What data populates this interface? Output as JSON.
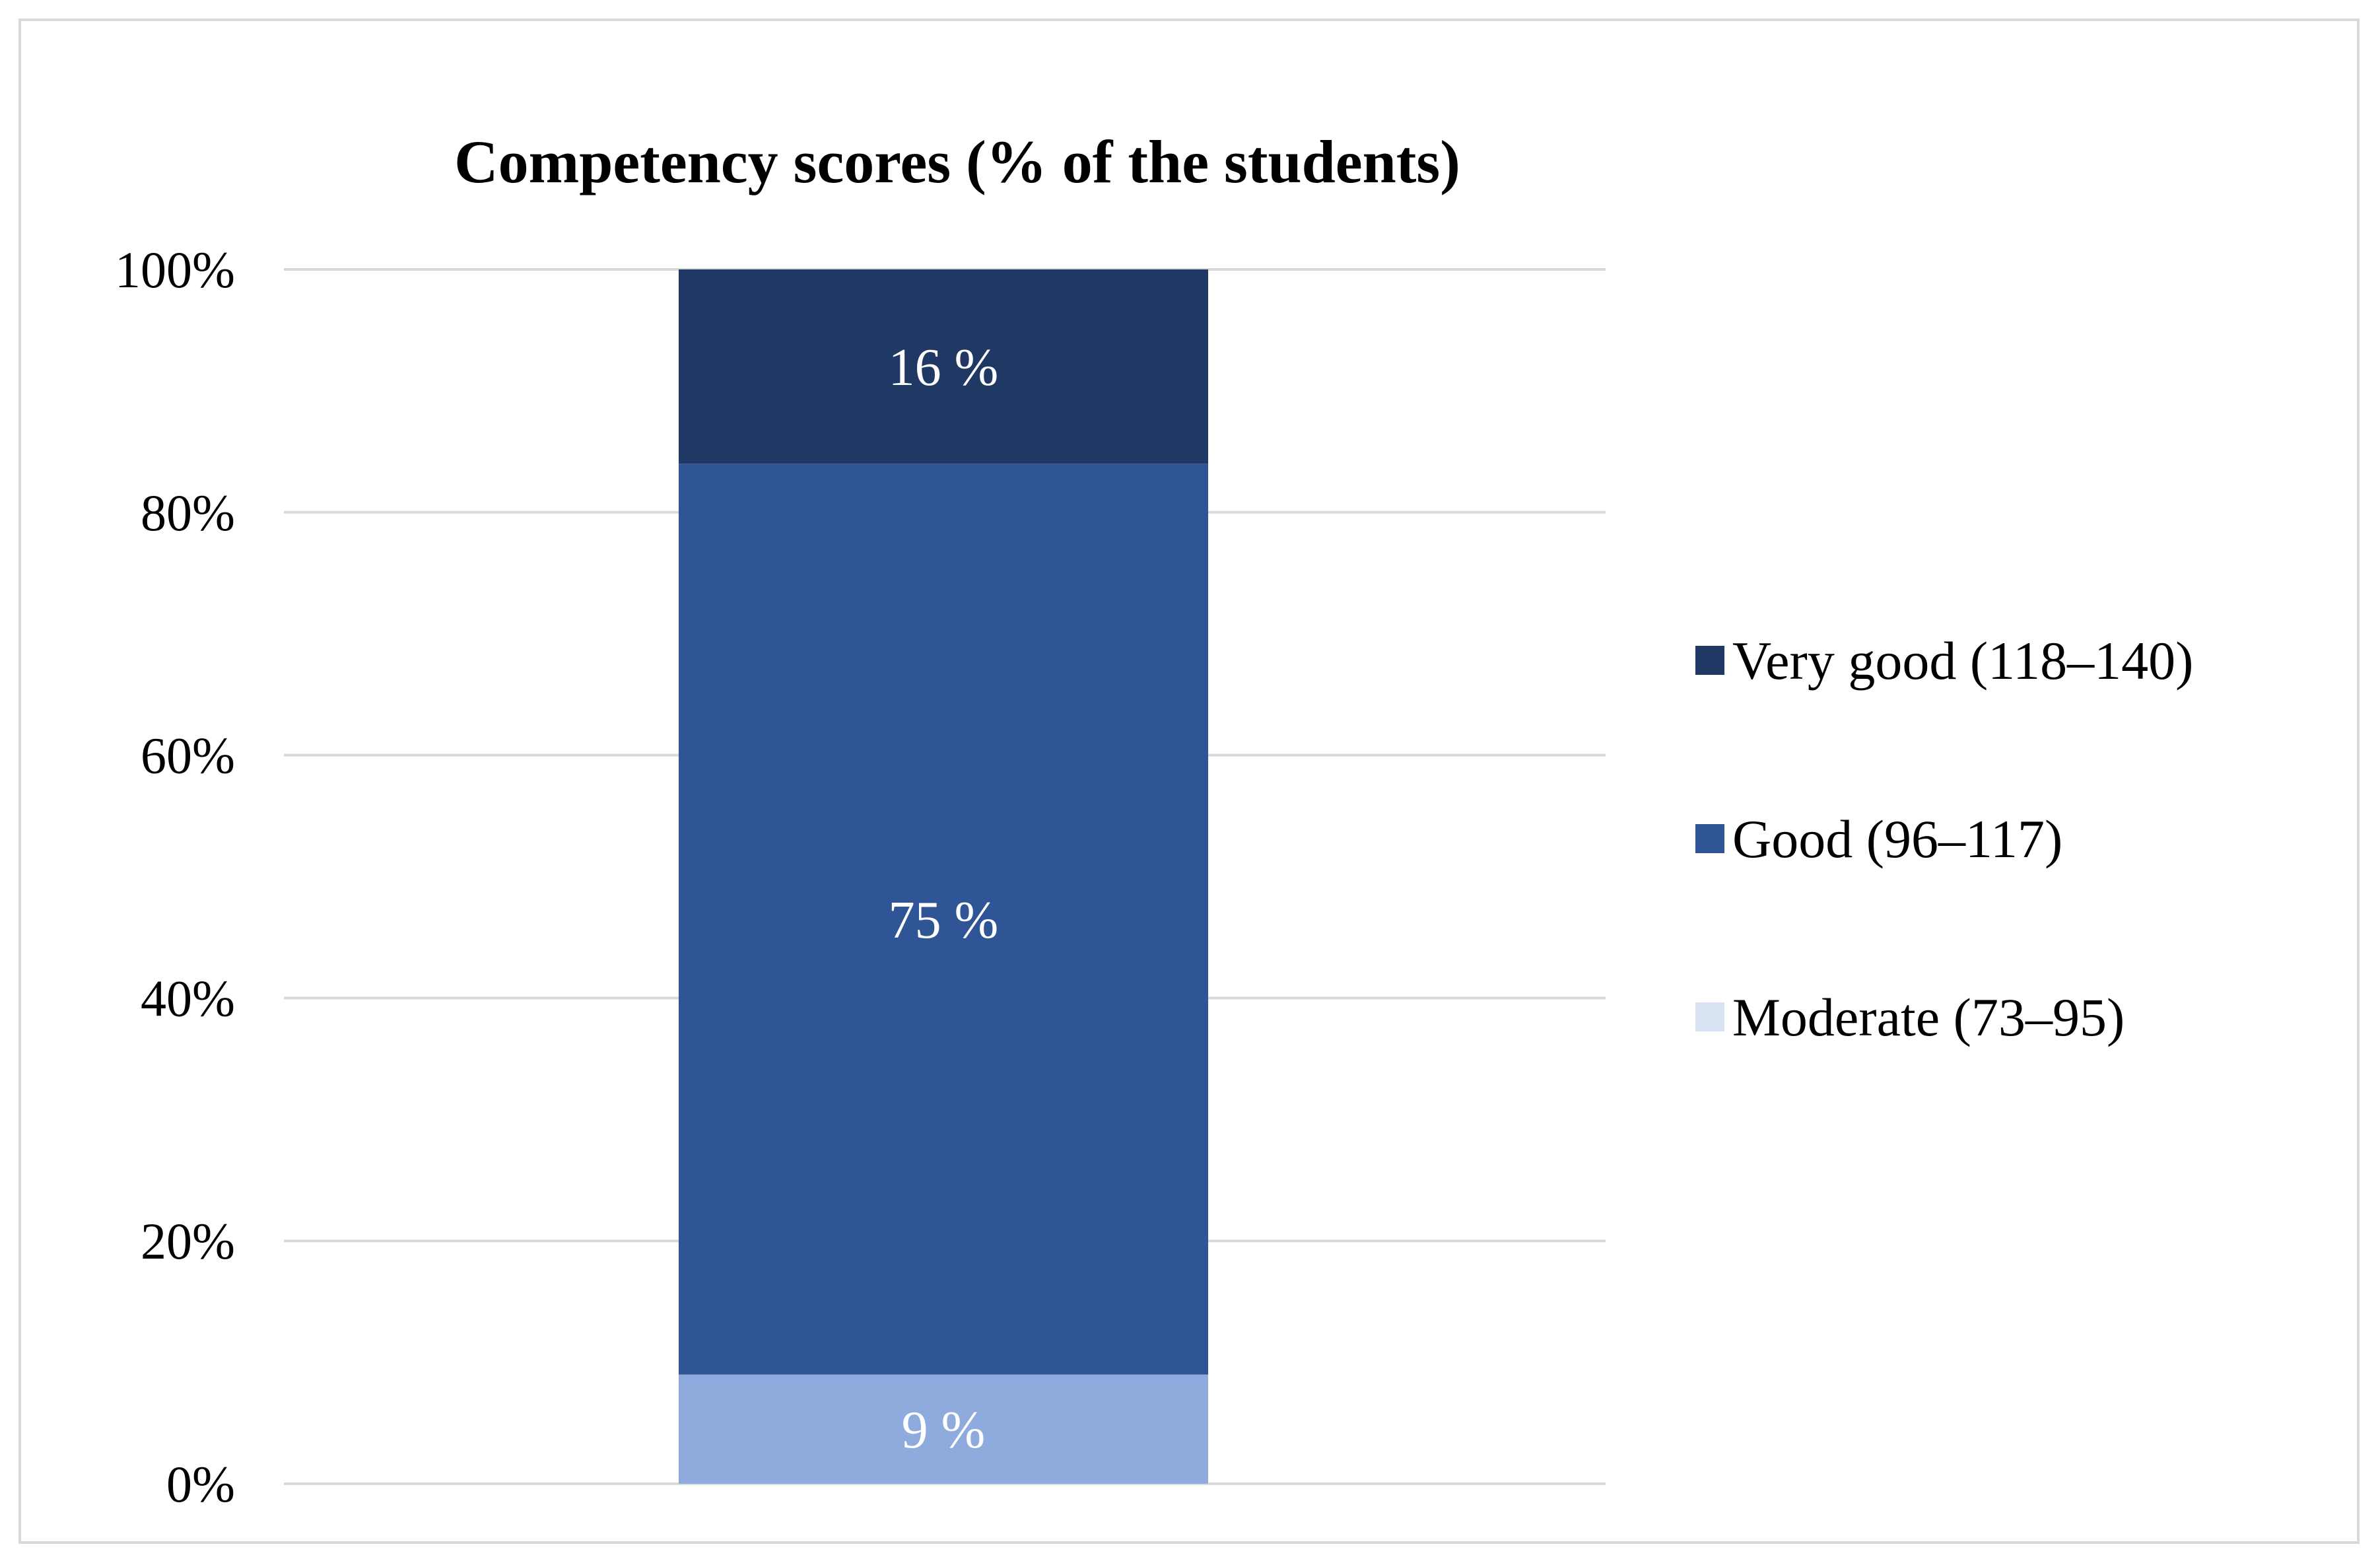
{
  "chart_data": {
    "type": "bar",
    "stacked": true,
    "title": "Competency scores (% of the students)",
    "xlabel": "",
    "ylabel": "",
    "ylim": [
      0,
      100
    ],
    "yticks": [
      "0%",
      "20%",
      "40%",
      "60%",
      "80%",
      "100%"
    ],
    "categories": [
      ""
    ],
    "grid": true,
    "legend_position": "right",
    "series": [
      {
        "name": "Moderate (73–95)",
        "values": [
          9
        ],
        "label": "9 %",
        "color": "#8faadc",
        "legend_color": "#dae3f3"
      },
      {
        "name": "Good (96–117)",
        "values": [
          75
        ],
        "label": "75 %",
        "color": "#2f5597",
        "legend_color": "#2f5597"
      },
      {
        "name": "Very good (118–140)",
        "values": [
          16
        ],
        "label": "16 %",
        "color": "#203864",
        "legend_color": "#203864"
      }
    ],
    "legend_order": [
      "Very good (118–140)",
      "Good (96–117)",
      "Moderate (73–95)"
    ],
    "gridline_color": "#d9d9d9"
  }
}
